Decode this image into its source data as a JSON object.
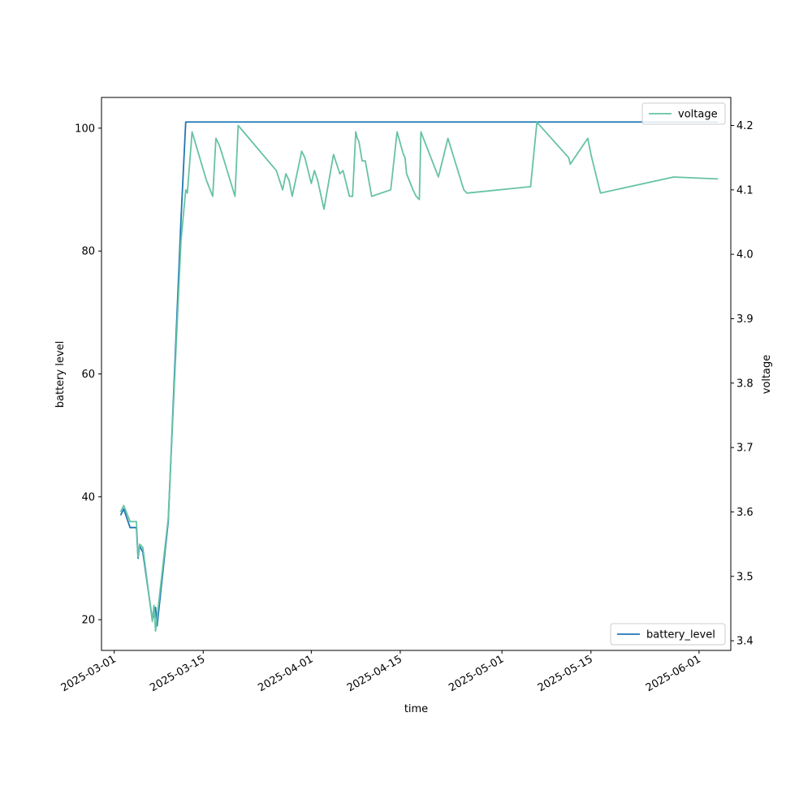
{
  "chart_data": {
    "type": "line",
    "xlabel": "time",
    "ylabel_left": "battery level",
    "ylabel_right": "voltage",
    "xlim": [
      "2025-02-27",
      "2025-06-06"
    ],
    "ylim_left": [
      15,
      105
    ],
    "ylim_right": [
      3.385,
      4.2435
    ],
    "x_ticks": [
      "2025-03-01",
      "2025-03-15",
      "2025-04-01",
      "2025-04-15",
      "2025-05-01",
      "2025-05-15",
      "2025-06-01"
    ],
    "y_ticks_left": [
      20,
      40,
      60,
      80,
      100
    ],
    "y_ticks_right": [
      3.4,
      3.5,
      3.6,
      3.7,
      3.8,
      3.9,
      4.0,
      4.1,
      4.2
    ],
    "grid": false,
    "series": [
      {
        "name": "battery_level",
        "axis": "left",
        "color": "#1f77b4",
        "legend_position": "lower-right",
        "points": [
          [
            "2025-03-02T00:00",
            37
          ],
          [
            "2025-03-02T12:00",
            38
          ],
          [
            "2025-03-03T12:00",
            35
          ],
          [
            "2025-03-04T12:00",
            35
          ],
          [
            "2025-03-04T18:00",
            30
          ],
          [
            "2025-03-05T00:00",
            32
          ],
          [
            "2025-03-05T12:00",
            31
          ],
          [
            "2025-03-07T00:00",
            20
          ],
          [
            "2025-03-07T12:00",
            22
          ],
          [
            "2025-03-07T18:00",
            19
          ],
          [
            "2025-03-09T12:00",
            36
          ],
          [
            "2025-03-11T12:00",
            85
          ],
          [
            "2025-03-12T06:00",
            101
          ],
          [
            "2025-06-04T00:00",
            101
          ]
        ]
      },
      {
        "name": "voltage",
        "axis": "right",
        "color": "#66c2a5",
        "legend_position": "upper-right",
        "points": [
          [
            "2025-03-02T00:00",
            3.6
          ],
          [
            "2025-03-02T12:00",
            3.61
          ],
          [
            "2025-03-03T12:00",
            3.585
          ],
          [
            "2025-03-04T12:00",
            3.585
          ],
          [
            "2025-03-04T18:00",
            3.53
          ],
          [
            "2025-03-05T00:00",
            3.55
          ],
          [
            "2025-03-05T12:00",
            3.545
          ],
          [
            "2025-03-07T00:00",
            3.43
          ],
          [
            "2025-03-07T06:00",
            3.455
          ],
          [
            "2025-03-07T12:00",
            3.415
          ],
          [
            "2025-03-09T12:00",
            3.59
          ],
          [
            "2025-03-11T12:00",
            4.02
          ],
          [
            "2025-03-12T06:00",
            4.1
          ],
          [
            "2025-03-12T12:00",
            4.095
          ],
          [
            "2025-03-13T06:00",
            4.19
          ],
          [
            "2025-03-15T12:00",
            4.115
          ],
          [
            "2025-03-16T12:00",
            4.09
          ],
          [
            "2025-03-17T00:00",
            4.18
          ],
          [
            "2025-03-17T12:00",
            4.17
          ],
          [
            "2025-03-18T00:00",
            4.155
          ],
          [
            "2025-03-20T00:00",
            4.09
          ],
          [
            "2025-03-20T12:00",
            4.2
          ],
          [
            "2025-03-26T12:00",
            4.13
          ],
          [
            "2025-03-27T00:00",
            4.115
          ],
          [
            "2025-03-27T12:00",
            4.1
          ],
          [
            "2025-03-28T00:00",
            4.125
          ],
          [
            "2025-03-28T12:00",
            4.115
          ],
          [
            "2025-03-29T00:00",
            4.09
          ],
          [
            "2025-03-30T12:00",
            4.16
          ],
          [
            "2025-03-31T00:00",
            4.15
          ],
          [
            "2025-04-01T00:00",
            4.11
          ],
          [
            "2025-04-01T12:00",
            4.13
          ],
          [
            "2025-04-02T00:00",
            4.115
          ],
          [
            "2025-04-03T00:00",
            4.07
          ],
          [
            "2025-04-04T12:00",
            4.155
          ],
          [
            "2025-04-05T12:00",
            4.125
          ],
          [
            "2025-04-06T00:00",
            4.13
          ],
          [
            "2025-04-07T00:00",
            4.09
          ],
          [
            "2025-04-07T12:00",
            4.09
          ],
          [
            "2025-04-08T00:00",
            4.19
          ],
          [
            "2025-04-08T06:00",
            4.18
          ],
          [
            "2025-04-08T12:00",
            4.175
          ],
          [
            "2025-04-09T00:00",
            4.145
          ],
          [
            "2025-04-09T12:00",
            4.145
          ],
          [
            "2025-04-10T12:00",
            4.09
          ],
          [
            "2025-04-13T12:00",
            4.1
          ],
          [
            "2025-04-14T12:00",
            4.19
          ],
          [
            "2025-04-15T12:00",
            4.155
          ],
          [
            "2025-04-15T18:00",
            4.15
          ],
          [
            "2025-04-16T00:00",
            4.125
          ],
          [
            "2025-04-17T00:00",
            4.1
          ],
          [
            "2025-04-17T12:00",
            4.09
          ],
          [
            "2025-04-18T00:00",
            4.085
          ],
          [
            "2025-04-18T06:00",
            4.19
          ],
          [
            "2025-04-21T00:00",
            4.12
          ],
          [
            "2025-04-22T12:00",
            4.18
          ],
          [
            "2025-04-25T00:00",
            4.1
          ],
          [
            "2025-04-25T12:00",
            4.095
          ],
          [
            "2025-05-05T12:00",
            4.105
          ],
          [
            "2025-05-06T12:00",
            4.205
          ],
          [
            "2025-05-11T12:00",
            4.15
          ],
          [
            "2025-05-11T18:00",
            4.14
          ],
          [
            "2025-05-14T12:00",
            4.18
          ],
          [
            "2025-05-15T00:00",
            4.155
          ],
          [
            "2025-05-16T12:00",
            4.095
          ],
          [
            "2025-05-28T00:00",
            4.12
          ],
          [
            "2025-06-04T00:00",
            4.117
          ]
        ]
      }
    ]
  }
}
